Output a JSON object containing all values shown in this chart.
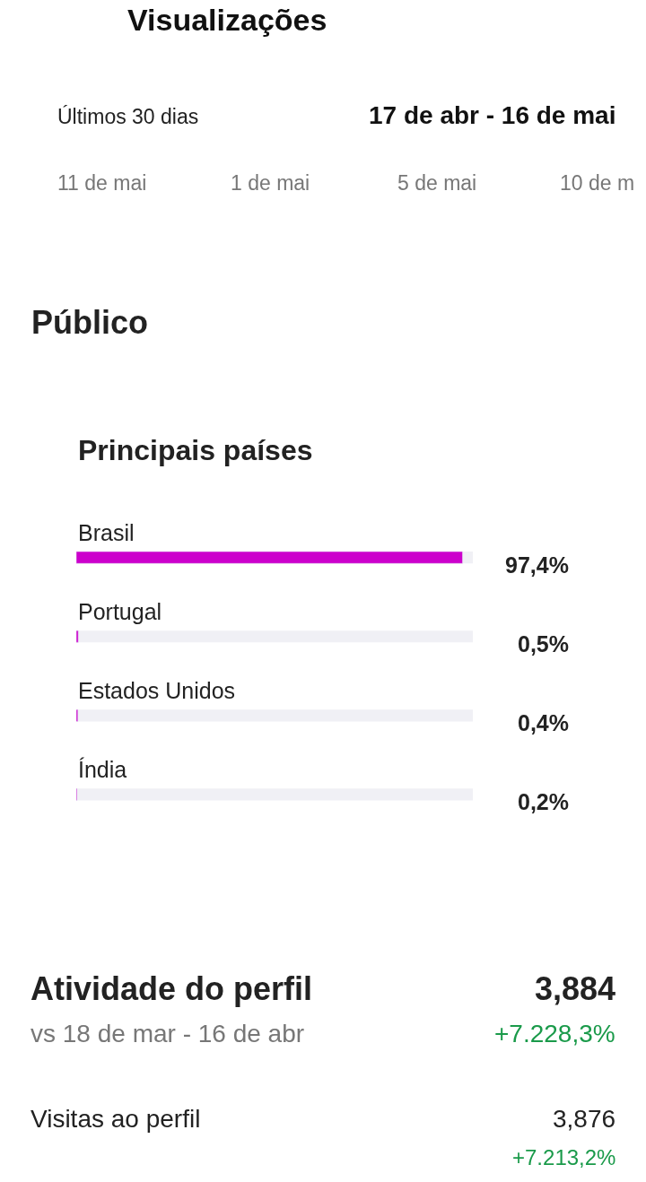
{
  "chart_data": {
    "type": "bar",
    "orientation": "horizontal",
    "title": "Principais países",
    "categories": [
      "Brasil",
      "Portugal",
      "Estados Unidos",
      "Índia"
    ],
    "values": [
      97.4,
      0.5,
      0.4,
      0.2
    ],
    "value_labels": [
      "97,4%",
      "0,5%",
      "0,4%",
      "0,2%"
    ],
    "color": "#cc00cc",
    "xlim": [
      0,
      100
    ],
    "tick_labels": false,
    "annotations": [
      "Visualizações",
      "Últimos 30 dias",
      "17 de abr - 16 de mai",
      "11 de mai",
      "1 de mai",
      "5 de mai",
      "10 de m",
      "Público",
      "Atividade do perfil",
      "vs 18 de mar - 16 de abr",
      "3,884",
      "+7.228,3%",
      "Visitas ao perfil",
      "3,876",
      "+7.213,2%"
    ]
  }
}
